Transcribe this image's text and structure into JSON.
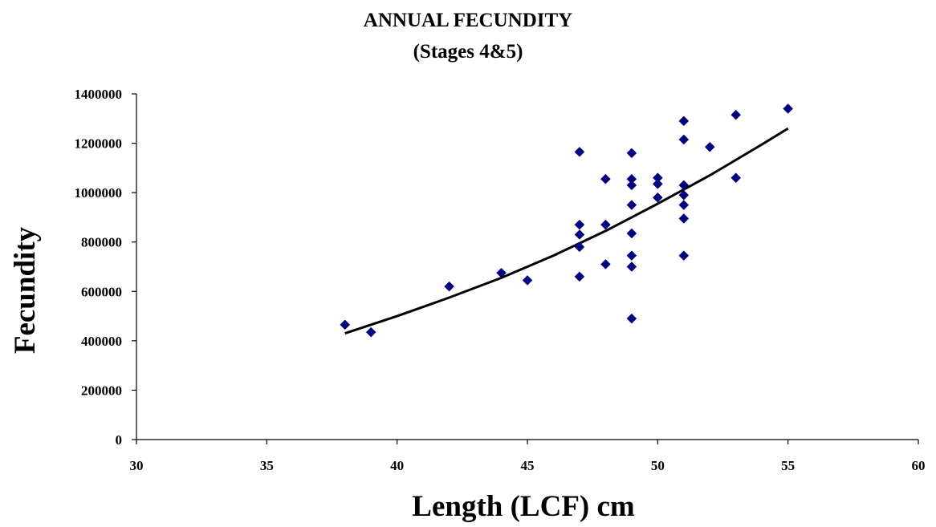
{
  "chart_data": {
    "type": "scatter",
    "title": "ANNUAL FECUNDITY",
    "subtitle": "(Stages 4&5)",
    "xlabel": "Length (LCF) cm",
    "ylabel": "Fecundity",
    "xlim": [
      30,
      60
    ],
    "ylim": [
      0,
      1400000
    ],
    "x_ticks": [
      "30",
      "35",
      "40",
      "45",
      "50",
      "55",
      "60"
    ],
    "y_ticks": [
      "0",
      "200000",
      "400000",
      "600000",
      "800000",
      "1000000",
      "1200000",
      "1400000"
    ],
    "grid": false,
    "legend": "none",
    "marker": "diamond",
    "marker_color": "#000080",
    "trendline_color": "#000000",
    "points": [
      {
        "x": 38,
        "y": 465000
      },
      {
        "x": 39,
        "y": 435000
      },
      {
        "x": 42,
        "y": 620000
      },
      {
        "x": 44,
        "y": 675000
      },
      {
        "x": 45,
        "y": 645000
      },
      {
        "x": 47,
        "y": 1165000
      },
      {
        "x": 47,
        "y": 870000
      },
      {
        "x": 47,
        "y": 830000
      },
      {
        "x": 47,
        "y": 780000
      },
      {
        "x": 47,
        "y": 660000
      },
      {
        "x": 48,
        "y": 1055000
      },
      {
        "x": 48,
        "y": 870000
      },
      {
        "x": 48,
        "y": 710000
      },
      {
        "x": 49,
        "y": 1160000
      },
      {
        "x": 49,
        "y": 1055000
      },
      {
        "x": 49,
        "y": 1030000
      },
      {
        "x": 49,
        "y": 950000
      },
      {
        "x": 49,
        "y": 835000
      },
      {
        "x": 49,
        "y": 745000
      },
      {
        "x": 49,
        "y": 700000
      },
      {
        "x": 49,
        "y": 490000
      },
      {
        "x": 50,
        "y": 1060000
      },
      {
        "x": 50,
        "y": 1035000
      },
      {
        "x": 50,
        "y": 980000
      },
      {
        "x": 51,
        "y": 1290000
      },
      {
        "x": 51,
        "y": 1215000
      },
      {
        "x": 51,
        "y": 1030000
      },
      {
        "x": 51,
        "y": 990000
      },
      {
        "x": 51,
        "y": 950000
      },
      {
        "x": 51,
        "y": 895000
      },
      {
        "x": 51,
        "y": 745000
      },
      {
        "x": 52,
        "y": 1185000
      },
      {
        "x": 53,
        "y": 1315000
      },
      {
        "x": 53,
        "y": 1060000
      },
      {
        "x": 55,
        "y": 1340000
      }
    ],
    "trendline": {
      "type": "power",
      "x": [
        38,
        40,
        42,
        44,
        46,
        48,
        50,
        52,
        54,
        55
      ],
      "y": [
        430000,
        500000,
        575000,
        655000,
        745000,
        845000,
        955000,
        1070000,
        1195000,
        1260000
      ]
    }
  }
}
